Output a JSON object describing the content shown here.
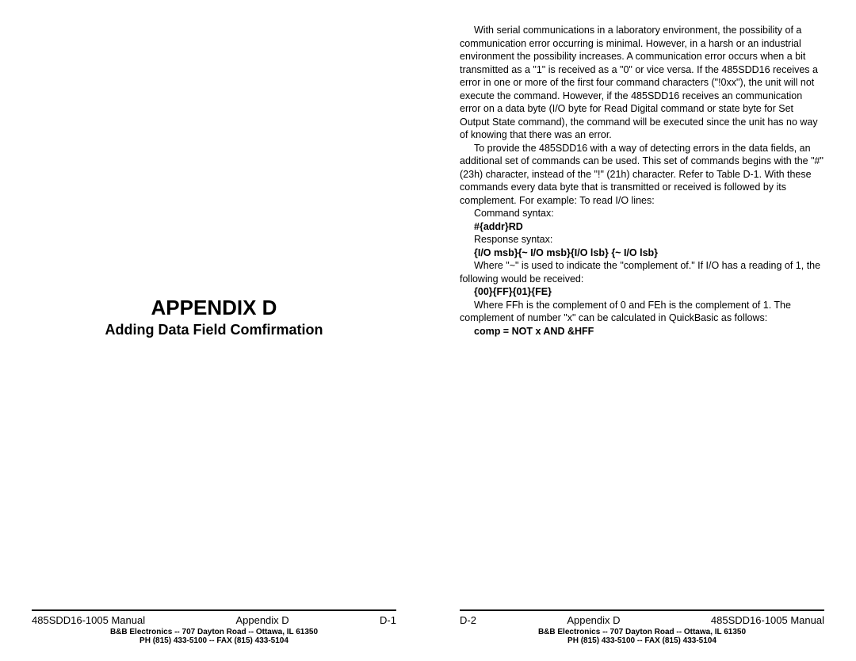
{
  "left": {
    "title": "APPENDIX D",
    "subtitle": "Adding Data Field Comfirmation",
    "footer": {
      "manual": "485SDD16-1005 Manual",
      "section": "Appendix D",
      "pagenum": "D-1",
      "company": "B&B Electronics  --  707 Dayton Road  --  Ottawa, IL  61350",
      "phone": "PH (815) 433-5100  --  FAX (815) 433-5104"
    }
  },
  "right": {
    "p1": "With serial communications in a laboratory environment, the possibility of a communication error occurring is minimal.  However, in a harsh or an industrial environment the possibility increases.  A communication error occurs when a bit transmitted as a \"1\" is received as a \"0\" or vice versa.  If the 485SDD16 receives a error in one or more of the first four command characters (\"!0xx\"), the unit will not execute the command.  However, if the 485SDD16 receives an communication error on a  data byte (I/O byte for Read Digital command or state byte for Set Output State command), the command will be executed since the unit has no way of knowing that there was an error.",
    "p2": "To provide the 485SDD16 with a way of detecting errors in the data fields, an additional set of commands can be used.  This set of commands begins with the \"#\" (23h) character, instead of the \"!\" (21h) character.  Refer to Table D-1.  With these commands every data byte that is transmitted or received is followed by its complement.  For example:  To read I/O lines:",
    "cmd_syntax_label": "Command syntax:",
    "cmd_syntax": "#{addr}RD",
    "resp_syntax_label": "Response syntax:",
    "resp_syntax": "{I/O msb}{~ I/O msb}{I/O lsb} {~ I/O lsb}",
    "p3": "Where \"~\" is used to indicate the \"complement of.\"  If I/O has a reading of 1, the following would be received:",
    "example": "{00}{FF}{01}{FE}",
    "p4": "Where FFh is the complement of 0 and FEh is the complement of 1.  The complement of number \"x\" can be calculated in QuickBasic as follows:",
    "comp": "comp = NOT x AND &HFF",
    "footer": {
      "pagenum": "D-2",
      "section": "Appendix D",
      "manual": "485SDD16-1005 Manual",
      "company": "B&B Electronics  --  707 Dayton Road  --  Ottawa, IL  61350",
      "phone": "PH (815) 433-5100  --  FAX (815) 433-5104"
    }
  }
}
